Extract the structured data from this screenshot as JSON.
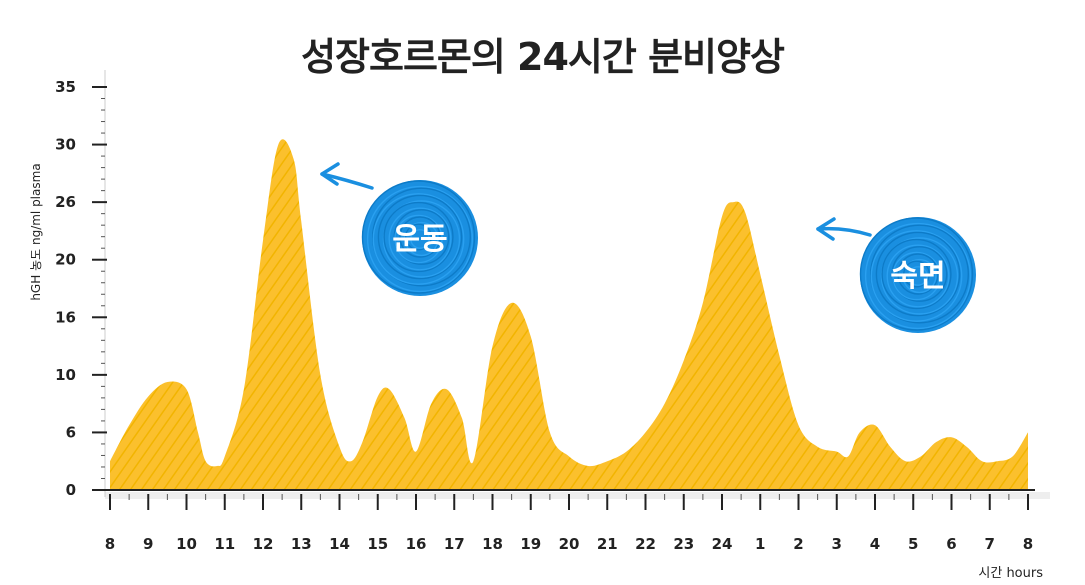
{
  "chart_data": {
    "type": "area",
    "title": "성장호르몬의 24시간 분비양상",
    "ylabel": "hGH 농도 ng/ml plasma",
    "xlabel": "시간 hours",
    "y_ticks": [
      "0",
      "6",
      "10",
      "16",
      "20",
      "26",
      "30",
      "35"
    ],
    "x_ticks": [
      "8",
      "9",
      "10",
      "11",
      "12",
      "13",
      "14",
      "15",
      "16",
      "17",
      "18",
      "19",
      "20",
      "21",
      "22",
      "23",
      "24",
      "1",
      "2",
      "3",
      "4",
      "5",
      "6",
      "7",
      "8"
    ],
    "series": [
      {
        "x": [
          "8",
          "8.5",
          "9",
          "9.5",
          "10",
          "10.3",
          "10.5",
          "10.8",
          "11",
          "11.5",
          "12",
          "12.4",
          "12.8",
          "13",
          "13.5",
          "14",
          "14.3",
          "14.6",
          "15",
          "15.3",
          "15.7",
          "16",
          "16.4",
          "16.8",
          "17.2",
          "17.5",
          "18",
          "18.5",
          "19",
          "19.5",
          "20",
          "20.5",
          "21",
          "21.5",
          "22",
          "22.5",
          "23",
          "23.5",
          "24",
          "24.3",
          "24.6",
          "1",
          "1.5",
          "2",
          "2.5",
          "3",
          "3.3",
          "3.6",
          "4",
          "4.4",
          "4.8",
          "5.2",
          "5.6",
          "6",
          "6.4",
          "6.8",
          "7.2",
          "7.6",
          "8"
        ],
        "values": [
          3,
          6.5,
          8.5,
          9.5,
          9,
          6,
          3,
          2.5,
          3.5,
          9,
          22,
          30,
          29,
          24,
          10,
          4.5,
          3,
          5,
          8.5,
          9,
          7,
          4,
          8,
          9,
          7,
          3,
          13,
          17,
          14,
          6,
          3.5,
          2.5,
          3,
          4,
          6,
          8,
          11.5,
          17,
          24.5,
          26,
          25,
          19,
          12,
          6.5,
          4.5,
          4,
          3.5,
          6,
          6.5,
          4.5,
          3,
          3.5,
          5,
          5.5,
          4.5,
          3,
          3,
          3.5,
          6
        ]
      }
    ],
    "ylim": [
      0,
      35
    ],
    "colors": {
      "area": "#fbbf24",
      "area_dark": "#f0a800",
      "bubble": "#1a8fe0"
    },
    "annotations": [
      {
        "text": "운동",
        "x": "13",
        "y": 30
      },
      {
        "text": "숙면",
        "x": "1",
        "y": 26
      }
    ]
  }
}
